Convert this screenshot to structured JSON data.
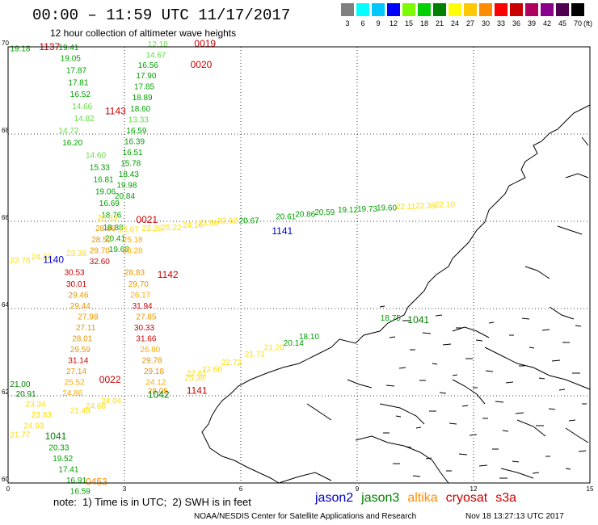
{
  "header": {
    "title": "00:00 – 11:59 UTC 11/17/2017",
    "subtitle": "12 hour collection of altimeter wave heights"
  },
  "color_scale": {
    "unit": "(ft)",
    "bins": [
      {
        "label": "3",
        "color": "#808080"
      },
      {
        "label": "6",
        "color": "#00ffff"
      },
      {
        "label": "9",
        "color": "#00c8ff"
      },
      {
        "label": "12",
        "color": "#0000ff"
      },
      {
        "label": "15",
        "color": "#7cfc00"
      },
      {
        "label": "18",
        "color": "#00d000"
      },
      {
        "label": "21",
        "color": "#008000"
      },
      {
        "label": "24",
        "color": "#ffff00"
      },
      {
        "label": "27",
        "color": "#ffc800"
      },
      {
        "label": "30",
        "color": "#ff8c00"
      },
      {
        "label": "33",
        "color": "#ff0000"
      },
      {
        "label": "36",
        "color": "#c80000"
      },
      {
        "label": "39",
        "color": "#b00060"
      },
      {
        "label": "42",
        "color": "#8b008b"
      },
      {
        "label": "45",
        "color": "#500050"
      },
      {
        "label": "70",
        "color": "#000000"
      }
    ]
  },
  "axes": {
    "x_ticks": [
      "0",
      "3",
      "6",
      "9",
      "12",
      "15"
    ],
    "y_ticks": [
      "70",
      "68",
      "66",
      "64",
      "62",
      "60"
    ]
  },
  "tracks": [
    {
      "time": "1137",
      "color": "#cc0000",
      "x": 0.8,
      "y": 69.93
    },
    {
      "time": "0019",
      "color": "#cc0000",
      "x": 4.8,
      "y": 70.0
    },
    {
      "time": "0020",
      "color": "#cc0000",
      "x": 4.7,
      "y": 69.52
    },
    {
      "time": "1143",
      "color": "#cc0000",
      "x": 2.5,
      "y": 68.45
    },
    {
      "time": "0021",
      "color": "#cc0000",
      "x": 3.3,
      "y": 65.96
    },
    {
      "time": "1140",
      "color": "#0000cc",
      "x": 0.9,
      "y": 65.05
    },
    {
      "time": "1141",
      "color": "#0000cc",
      "x": 6.8,
      "y": 65.7
    },
    {
      "time": "1142",
      "color": "#cc0000",
      "x": 3.85,
      "y": 64.7
    },
    {
      "time": "1041",
      "color": "#008000",
      "x": 10.3,
      "y": 63.67
    },
    {
      "time": "0022",
      "color": "#cc0000",
      "x": 2.35,
      "y": 62.3
    },
    {
      "time": "1042",
      "color": "#008000",
      "x": 3.6,
      "y": 61.95
    },
    {
      "time": "1141",
      "color": "#cc0000",
      "x": 4.6,
      "y": 62.05
    },
    {
      "time": "1041",
      "color": "#008000",
      "x": 0.95,
      "y": 61.0
    },
    {
      "time": "0453",
      "color": "#ff8c00",
      "x": 2.0,
      "y": 59.95
    }
  ],
  "swh": [
    {
      "v": "19.18",
      "c": "#00a000",
      "x": 0.05,
      "y": 69.9
    },
    {
      "v": "19.41",
      "c": "#00a000",
      "x": 1.3,
      "y": 69.93
    },
    {
      "v": "19.05",
      "c": "#00a000",
      "x": 1.35,
      "y": 69.68
    },
    {
      "v": "17.87",
      "c": "#00a000",
      "x": 1.5,
      "y": 69.4
    },
    {
      "v": "17.81",
      "c": "#00a000",
      "x": 1.55,
      "y": 69.12
    },
    {
      "v": "16.52",
      "c": "#00a000",
      "x": 1.6,
      "y": 68.85
    },
    {
      "v": "14.66",
      "c": "#66dd44",
      "x": 1.65,
      "y": 68.57
    },
    {
      "v": "14.82",
      "c": "#66dd44",
      "x": 1.7,
      "y": 68.3
    },
    {
      "v": "14.72",
      "c": "#66dd44",
      "x": 1.3,
      "y": 68.02
    },
    {
      "v": "16.20",
      "c": "#00a000",
      "x": 1.4,
      "y": 67.74
    },
    {
      "v": "14.60",
      "c": "#66dd44",
      "x": 2.0,
      "y": 67.45
    },
    {
      "v": "15.33",
      "c": "#00a000",
      "x": 2.1,
      "y": 67.18
    },
    {
      "v": "16.81",
      "c": "#00a000",
      "x": 2.2,
      "y": 66.9
    },
    {
      "v": "19.06",
      "c": "#00a000",
      "x": 2.25,
      "y": 66.62
    },
    {
      "v": "16.69",
      "c": "#00a000",
      "x": 2.35,
      "y": 66.35
    },
    {
      "v": "18.76",
      "c": "#00a000",
      "x": 2.4,
      "y": 66.08
    },
    {
      "v": "18.88",
      "c": "#00a000",
      "x": 2.45,
      "y": 65.8
    },
    {
      "v": "20.41",
      "c": "#00a000",
      "x": 2.5,
      "y": 65.55
    },
    {
      "v": "19.68",
      "c": "#00a000",
      "x": 2.6,
      "y": 65.3
    },
    {
      "v": "12.18",
      "c": "#66dd44",
      "x": 3.6,
      "y": 70.0
    },
    {
      "v": "14.67",
      "c": "#66dd44",
      "x": 3.55,
      "y": 69.75
    },
    {
      "v": "16.56",
      "c": "#00a000",
      "x": 3.35,
      "y": 69.52
    },
    {
      "v": "17.90",
      "c": "#00a000",
      "x": 3.3,
      "y": 69.28
    },
    {
      "v": "17.85",
      "c": "#00a000",
      "x": 3.25,
      "y": 69.03
    },
    {
      "v": "18.89",
      "c": "#00a000",
      "x": 3.2,
      "y": 68.78
    },
    {
      "v": "18.60",
      "c": "#00a000",
      "x": 3.15,
      "y": 68.52
    },
    {
      "v": "13.33",
      "c": "#66dd44",
      "x": 3.1,
      "y": 68.27
    },
    {
      "v": "16.59",
      "c": "#00a000",
      "x": 3.05,
      "y": 68.02
    },
    {
      "v": "16.39",
      "c": "#00a000",
      "x": 3.0,
      "y": 67.77
    },
    {
      "v": "16.51",
      "c": "#00a000",
      "x": 2.95,
      "y": 67.52
    },
    {
      "v": "15.78",
      "c": "#00a000",
      "x": 2.9,
      "y": 67.27
    },
    {
      "v": "18.43",
      "c": "#00a000",
      "x": 2.85,
      "y": 67.02
    },
    {
      "v": "19.98",
      "c": "#00a000",
      "x": 2.8,
      "y": 66.77
    },
    {
      "v": "20.84",
      "c": "#00a000",
      "x": 2.75,
      "y": 66.52
    },
    {
      "v": "26.63",
      "c": "#ffdd00",
      "x": 2.3,
      "y": 66.02
    },
    {
      "v": "28.66",
      "c": "#e69500",
      "x": 2.25,
      "y": 65.78
    },
    {
      "v": "28.52",
      "c": "#e69500",
      "x": 2.15,
      "y": 65.52
    },
    {
      "v": "29.70",
      "c": "#e69500",
      "x": 2.1,
      "y": 65.27
    },
    {
      "v": "32.60",
      "c": "#cc0000",
      "x": 2.1,
      "y": 65.02
    },
    {
      "v": "30.53",
      "c": "#cc0000",
      "x": 1.45,
      "y": 64.77
    },
    {
      "v": "30.01",
      "c": "#cc0000",
      "x": 1.5,
      "y": 64.5
    },
    {
      "v": "29.46",
      "c": "#e69500",
      "x": 1.55,
      "y": 64.25
    },
    {
      "v": "29.44",
      "c": "#e69500",
      "x": 1.6,
      "y": 64.0
    },
    {
      "v": "27.98",
      "c": "#e69500",
      "x": 1.8,
      "y": 63.75
    },
    {
      "v": "27.11",
      "c": "#e69500",
      "x": 1.75,
      "y": 63.5
    },
    {
      "v": "28.01",
      "c": "#e69500",
      "x": 1.65,
      "y": 63.25
    },
    {
      "v": "29.59",
      "c": "#e69500",
      "x": 1.6,
      "y": 63.0
    },
    {
      "v": "31.14",
      "c": "#cc0000",
      "x": 1.55,
      "y": 62.75
    },
    {
      "v": "27.14",
      "c": "#e69500",
      "x": 1.5,
      "y": 62.5
    },
    {
      "v": "25.52",
      "c": "#ffaa00",
      "x": 1.45,
      "y": 62.25
    },
    {
      "v": "24.86",
      "c": "#ffaa00",
      "x": 1.4,
      "y": 62.0
    },
    {
      "v": "25.18",
      "c": "#ffaa00",
      "x": 2.95,
      "y": 65.52
    },
    {
      "v": "26.28",
      "c": "#ffaa00",
      "x": 2.95,
      "y": 65.27
    },
    {
      "v": "28.83",
      "c": "#e69500",
      "x": 3.0,
      "y": 64.77
    },
    {
      "v": "29.70",
      "c": "#e69500",
      "x": 3.1,
      "y": 64.5
    },
    {
      "v": "26.17",
      "c": "#ffaa00",
      "x": 3.15,
      "y": 64.25
    },
    {
      "v": "31.94",
      "c": "#cc0000",
      "x": 3.2,
      "y": 64.0
    },
    {
      "v": "27.85",
      "c": "#e69500",
      "x": 3.3,
      "y": 63.75
    },
    {
      "v": "30.33",
      "c": "#cc0000",
      "x": 3.25,
      "y": 63.5
    },
    {
      "v": "31.66",
      "c": "#cc0000",
      "x": 3.3,
      "y": 63.25
    },
    {
      "v": "26.80",
      "c": "#ffaa00",
      "x": 3.4,
      "y": 63.0
    },
    {
      "v": "29.78",
      "c": "#e69500",
      "x": 3.45,
      "y": 62.75
    },
    {
      "v": "29.18",
      "c": "#e69500",
      "x": 3.5,
      "y": 62.5
    },
    {
      "v": "24.12",
      "c": "#ffaa00",
      "x": 3.55,
      "y": 62.25
    },
    {
      "v": "28.05",
      "c": "#e69500",
      "x": 3.6,
      "y": 62.05
    },
    {
      "v": "22.76",
      "c": "#ffdd00",
      "x": 0.05,
      "y": 65.05
    },
    {
      "v": "24.32",
      "c": "#ffdd00",
      "x": 0.6,
      "y": 65.12
    },
    {
      "v": "23.38",
      "c": "#ffdd00",
      "x": 1.5,
      "y": 65.2
    },
    {
      "v": "25.67",
      "c": "#ffdd00",
      "x": 2.85,
      "y": 65.75
    },
    {
      "v": "23.26",
      "c": "#ffdd00",
      "x": 3.45,
      "y": 65.78
    },
    {
      "v": "25.22",
      "c": "#ffdd00",
      "x": 3.95,
      "y": 65.8
    },
    {
      "v": "24.16",
      "c": "#ffdd00",
      "x": 4.5,
      "y": 65.85
    },
    {
      "v": "23.86",
      "c": "#ffdd00",
      "x": 4.9,
      "y": 65.9
    },
    {
      "v": "22.52",
      "c": "#ffdd00",
      "x": 5.4,
      "y": 65.95
    },
    {
      "v": "20.67",
      "c": "#00a000",
      "x": 5.95,
      "y": 65.95
    },
    {
      "v": "20.61",
      "c": "#00a000",
      "x": 6.9,
      "y": 66.05
    },
    {
      "v": "20.86",
      "c": "#00a000",
      "x": 7.4,
      "y": 66.1
    },
    {
      "v": "20.59",
      "c": "#00a000",
      "x": 7.9,
      "y": 66.15
    },
    {
      "v": "19.12",
      "c": "#00a000",
      "x": 8.5,
      "y": 66.2
    },
    {
      "v": "19.73",
      "c": "#00a000",
      "x": 9.0,
      "y": 66.22
    },
    {
      "v": "19.60",
      "c": "#00a000",
      "x": 9.5,
      "y": 66.25
    },
    {
      "v": "22.11",
      "c": "#ffdd00",
      "x": 10.0,
      "y": 66.28
    },
    {
      "v": "22.38",
      "c": "#ffdd00",
      "x": 10.5,
      "y": 66.3
    },
    {
      "v": "22.10",
      "c": "#ffdd00",
      "x": 11.0,
      "y": 66.32
    },
    {
      "v": "18.75",
      "c": "#00a000",
      "x": 9.6,
      "y": 63.72
    },
    {
      "v": "22.61",
      "c": "#ffdd00",
      "x": 4.6,
      "y": 62.45
    },
    {
      "v": "25.38",
      "c": "#ffdd00",
      "x": 4.55,
      "y": 62.35
    },
    {
      "v": "22.60",
      "c": "#ffdd00",
      "x": 5.0,
      "y": 62.55
    },
    {
      "v": "22.72",
      "c": "#ffdd00",
      "x": 5.5,
      "y": 62.7
    },
    {
      "v": "21.71",
      "c": "#ffdd00",
      "x": 6.1,
      "y": 62.9
    },
    {
      "v": "21.20",
      "c": "#ffdd00",
      "x": 6.6,
      "y": 63.05
    },
    {
      "v": "20.14",
      "c": "#00a000",
      "x": 7.1,
      "y": 63.15
    },
    {
      "v": "18.10",
      "c": "#00a000",
      "x": 7.5,
      "y": 63.3
    },
    {
      "v": "21.00",
      "c": "#008000",
      "x": 0.05,
      "y": 62.2
    },
    {
      "v": "20.91",
      "c": "#008000",
      "x": 0.2,
      "y": 61.98
    },
    {
      "v": "23.34",
      "c": "#ffdd00",
      "x": 0.45,
      "y": 61.75
    },
    {
      "v": "23.83",
      "c": "#ffdd00",
      "x": 0.6,
      "y": 61.5
    },
    {
      "v": "24.93",
      "c": "#ffdd00",
      "x": 0.4,
      "y": 61.25
    },
    {
      "v": "21.77",
      "c": "#ffdd00",
      "x": 0.05,
      "y": 61.05
    },
    {
      "v": "21.49",
      "c": "#ffdd00",
      "x": 1.6,
      "y": 61.6
    },
    {
      "v": "24.68",
      "c": "#ffdd00",
      "x": 2.0,
      "y": 61.7
    },
    {
      "v": "24.04",
      "c": "#ffdd00",
      "x": 2.4,
      "y": 61.82
    },
    {
      "v": "20.33",
      "c": "#00a000",
      "x": 1.05,
      "y": 60.75
    },
    {
      "v": "19.52",
      "c": "#00a000",
      "x": 1.15,
      "y": 60.5
    },
    {
      "v": "17.41",
      "c": "#00a000",
      "x": 1.3,
      "y": 60.25
    },
    {
      "v": "16.91",
      "c": "#00a000",
      "x": 1.5,
      "y": 60.0
    },
    {
      "v": "16.59",
      "c": "#00a000",
      "x": 1.6,
      "y": 59.75
    }
  ],
  "footer": {
    "note": "note:  1) Time is in UTC;  2) SWH is in feet",
    "legend": [
      {
        "label": "jason2",
        "color": "#0000cc"
      },
      {
        "label": "jason3",
        "color": "#008000"
      },
      {
        "label": "altika",
        "color": "#ff8c00"
      },
      {
        "label": "cryosat",
        "color": "#cc0000"
      },
      {
        "label": "s3a",
        "color": "#cc0000"
      }
    ],
    "credit": "NOAA/NESDIS Center for Satellite Applications and Research",
    "timestamp": "Nov 18 13:27:13 UTC 2017"
  }
}
